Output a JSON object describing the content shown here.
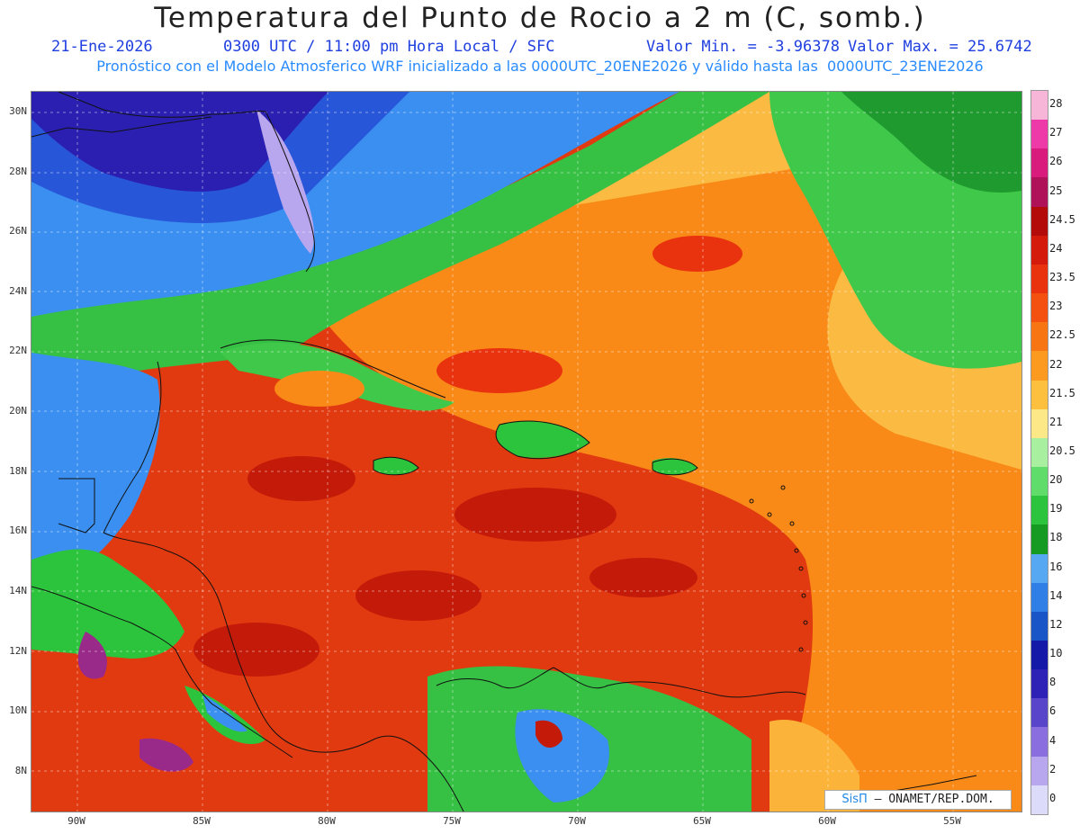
{
  "header": {
    "title": "Temperatura del Punto de Rocio a 2 m (C, somb.)",
    "date": "21-Ene-2026",
    "time": "0300 UTC / 11:00 pm Hora Local / SFC",
    "min": "Valor Min. = -3.96378",
    "max": "Valor Max. = 25.6742",
    "model": "Pronóstico con el Modelo Atmosferico WRF inicializado a las 0000UTC_20ENE2026 y válido hasta las  0000UTC_23ENE2026"
  },
  "axes": {
    "lat_labels": [
      "30N",
      "28N",
      "26N",
      "24N",
      "22N",
      "20N",
      "18N",
      "16N",
      "14N",
      "12N",
      "10N",
      "8N"
    ],
    "lon_labels": [
      "90W",
      "85W",
      "80W",
      "75W",
      "70W",
      "65W",
      "60W",
      "55W"
    ]
  },
  "colorbar": {
    "labels": [
      "28",
      "27",
      "26",
      "25",
      "24.5",
      "24",
      "23.5",
      "23",
      "22.5",
      "22",
      "21.5",
      "21",
      "20.5",
      "20",
      "19",
      "18",
      "16",
      "14",
      "12",
      "10",
      "8",
      "6",
      "4",
      "2",
      "0"
    ],
    "colors": [
      "#f7b6d8",
      "#ee3aa8",
      "#d81b7d",
      "#b0125a",
      "#b30a0a",
      "#d41b0b",
      "#e9330e",
      "#f4500f",
      "#f87514",
      "#fb9a1f",
      "#fcbf3e",
      "#fde888",
      "#a8f0a0",
      "#5fdc6a",
      "#2cc43c",
      "#159a22",
      "#56a8f3",
      "#2f7fe6",
      "#1a55c8",
      "#1419a8",
      "#2e22b6",
      "#5845c9",
      "#8a6ee0",
      "#b8a6ef",
      "#dcdcfa"
    ]
  },
  "credit": {
    "brand": "SisΠ",
    "text": " – ONAMET/REP.DOM."
  }
}
